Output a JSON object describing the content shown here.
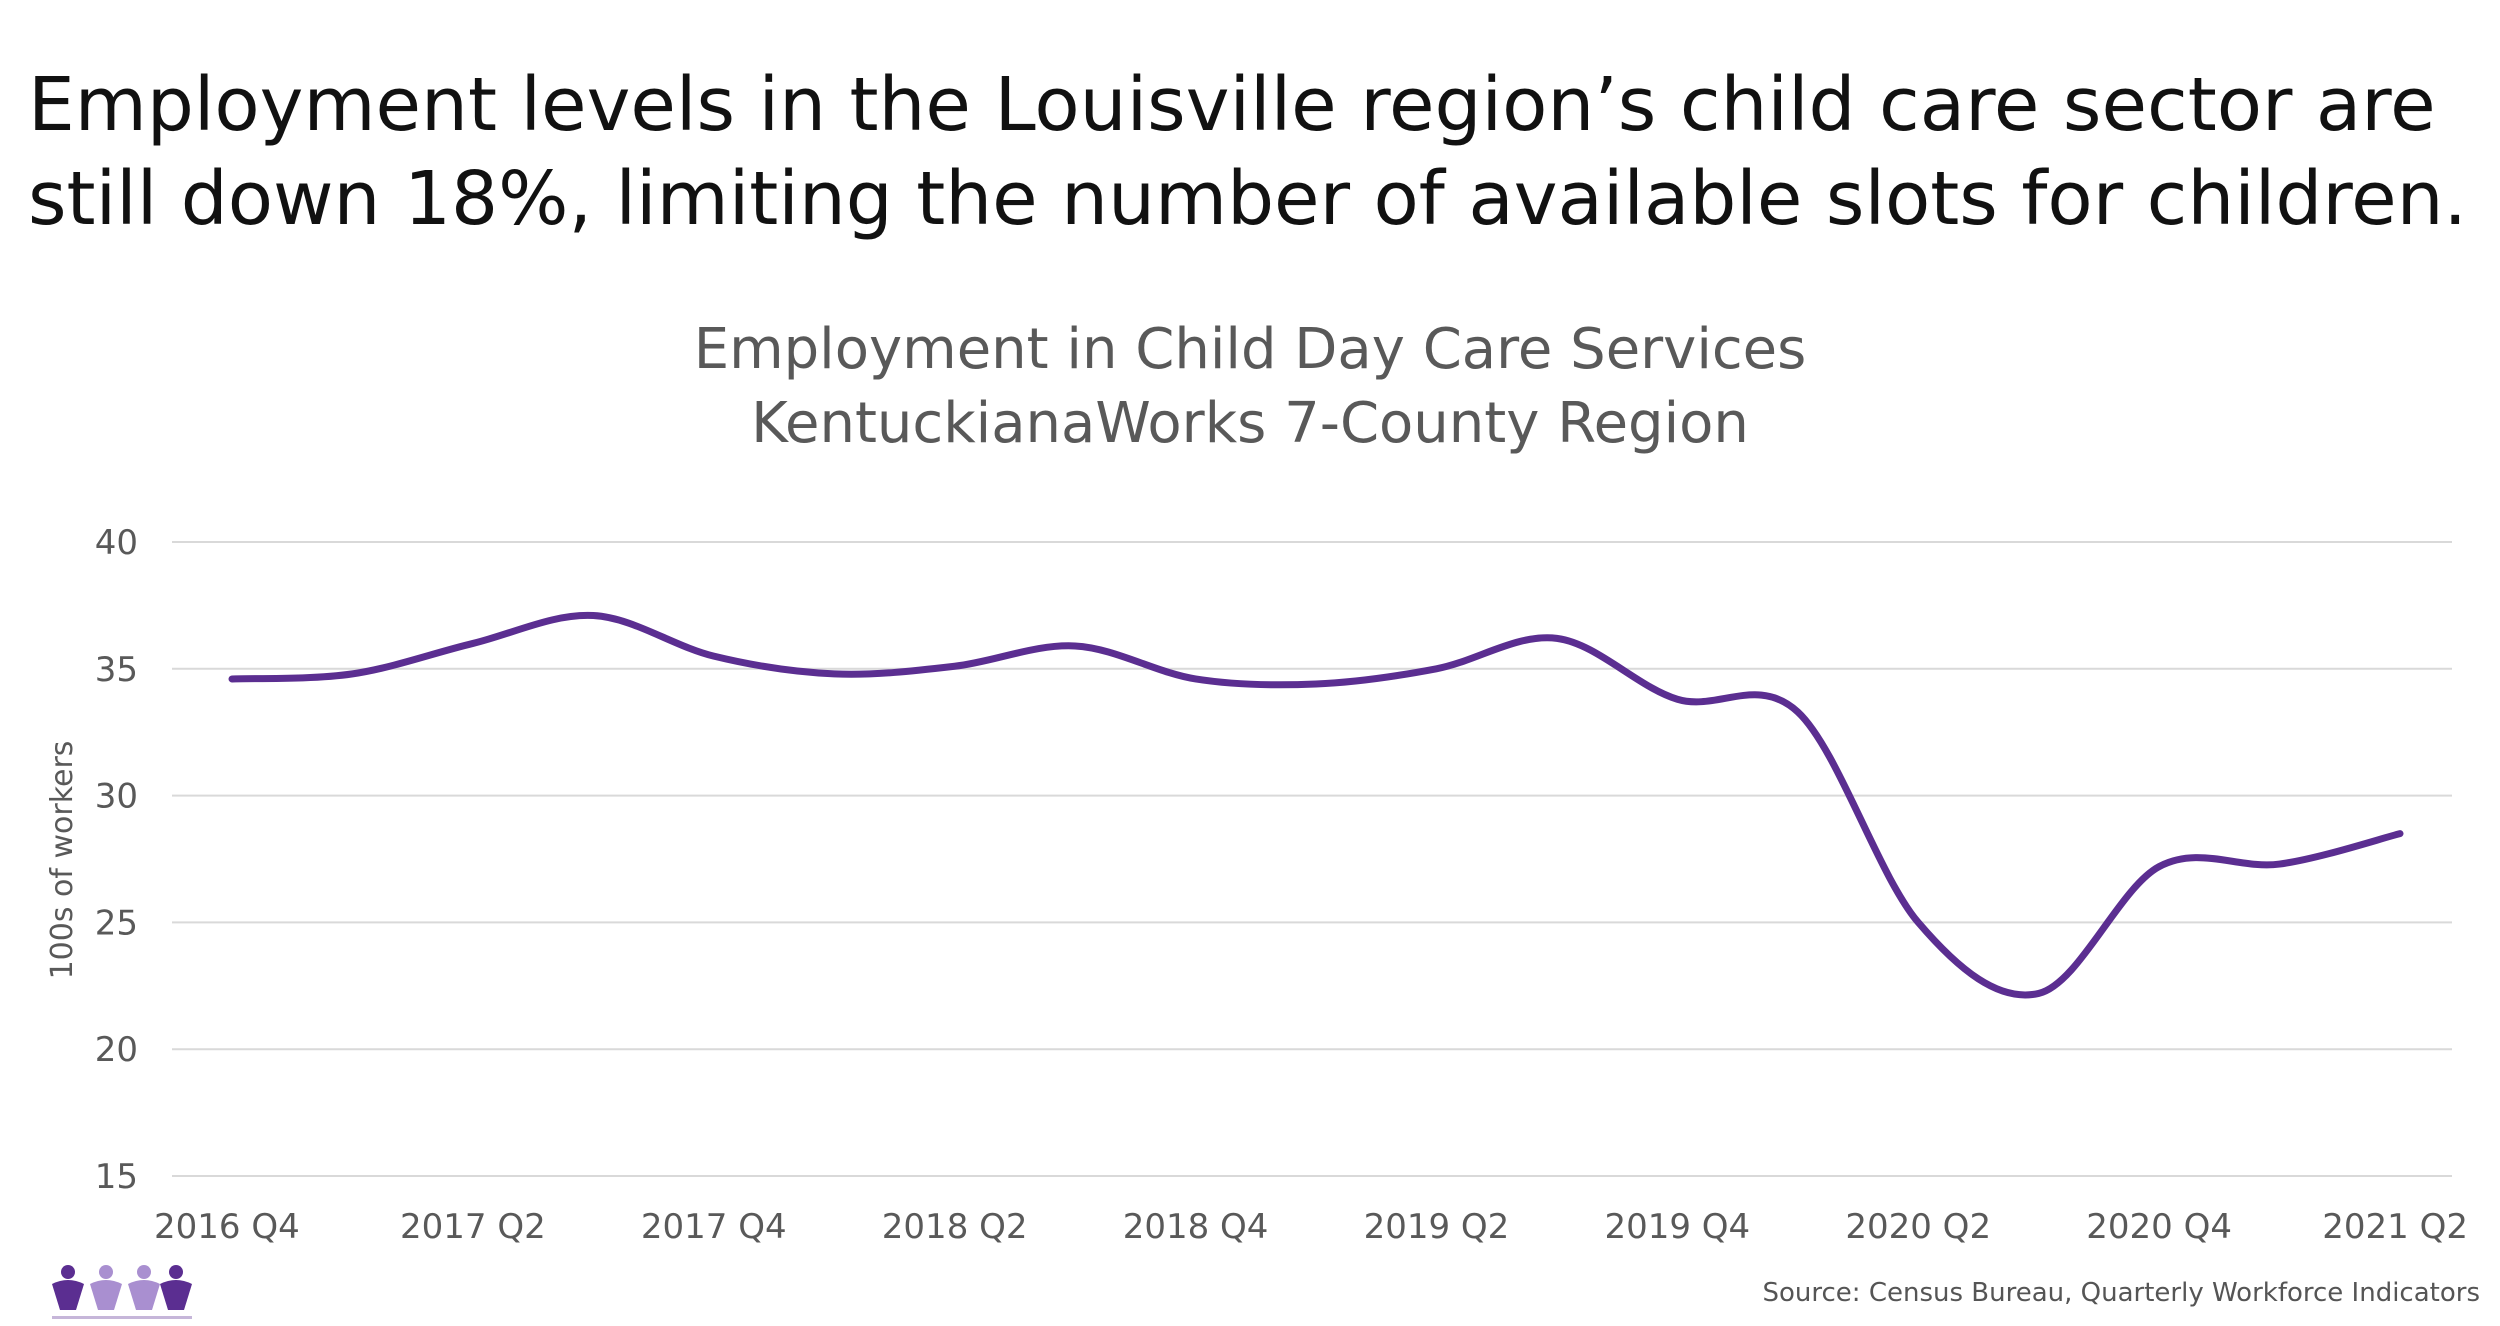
{
  "headline": {
    "line1": "Employment levels in the Louisville region’s child care sector are",
    "line2": "still down 18%, limiting the number of available slots for children."
  },
  "source": "Source: Census Bureau, Quarterly Workforce Indicators",
  "colors": {
    "line": "#5b2e91",
    "grid": "#d9d9d9",
    "axis_text": "#595959",
    "logo": "#5b2e91",
    "logo_light": "#a98fd0"
  },
  "logo": {
    "name": "kentuckianaworks-logo-icon"
  },
  "chart_data": {
    "type": "line",
    "title": "Employment in Child Day Care Services",
    "subtitle": "KentuckianaWorks 7-County Region",
    "xlabel": "",
    "ylabel": "100s of workers",
    "ylim": [
      15,
      40
    ],
    "yticks": [
      15,
      20,
      25,
      30,
      35,
      40
    ],
    "grid": true,
    "x": [
      "2016 Q4",
      "2017 Q1",
      "2017 Q2",
      "2017 Q3",
      "2017 Q4",
      "2018 Q1",
      "2018 Q2",
      "2018 Q3",
      "2018 Q4",
      "2019 Q1",
      "2019 Q2",
      "2019 Q3",
      "2019 Q4",
      "2020 Q1",
      "2020 Q2",
      "2020 Q3",
      "2020 Q4",
      "2021 Q1",
      "2021 Q2"
    ],
    "xtick_labels": [
      "2016 Q4",
      "2017 Q2",
      "2017 Q4",
      "2018 Q2",
      "2018 Q4",
      "2019 Q2",
      "2019 Q4",
      "2020 Q2",
      "2020 Q4",
      "2021 Q2"
    ],
    "series": [
      {
        "values": [
          34.6,
          34.8,
          36.0,
          37.1,
          35.5,
          34.8,
          35.1,
          35.9,
          34.6,
          34.4,
          35.0,
          36.2,
          33.8,
          33.3,
          25.0,
          22.2,
          27.2,
          27.3,
          28.5
        ]
      }
    ]
  }
}
